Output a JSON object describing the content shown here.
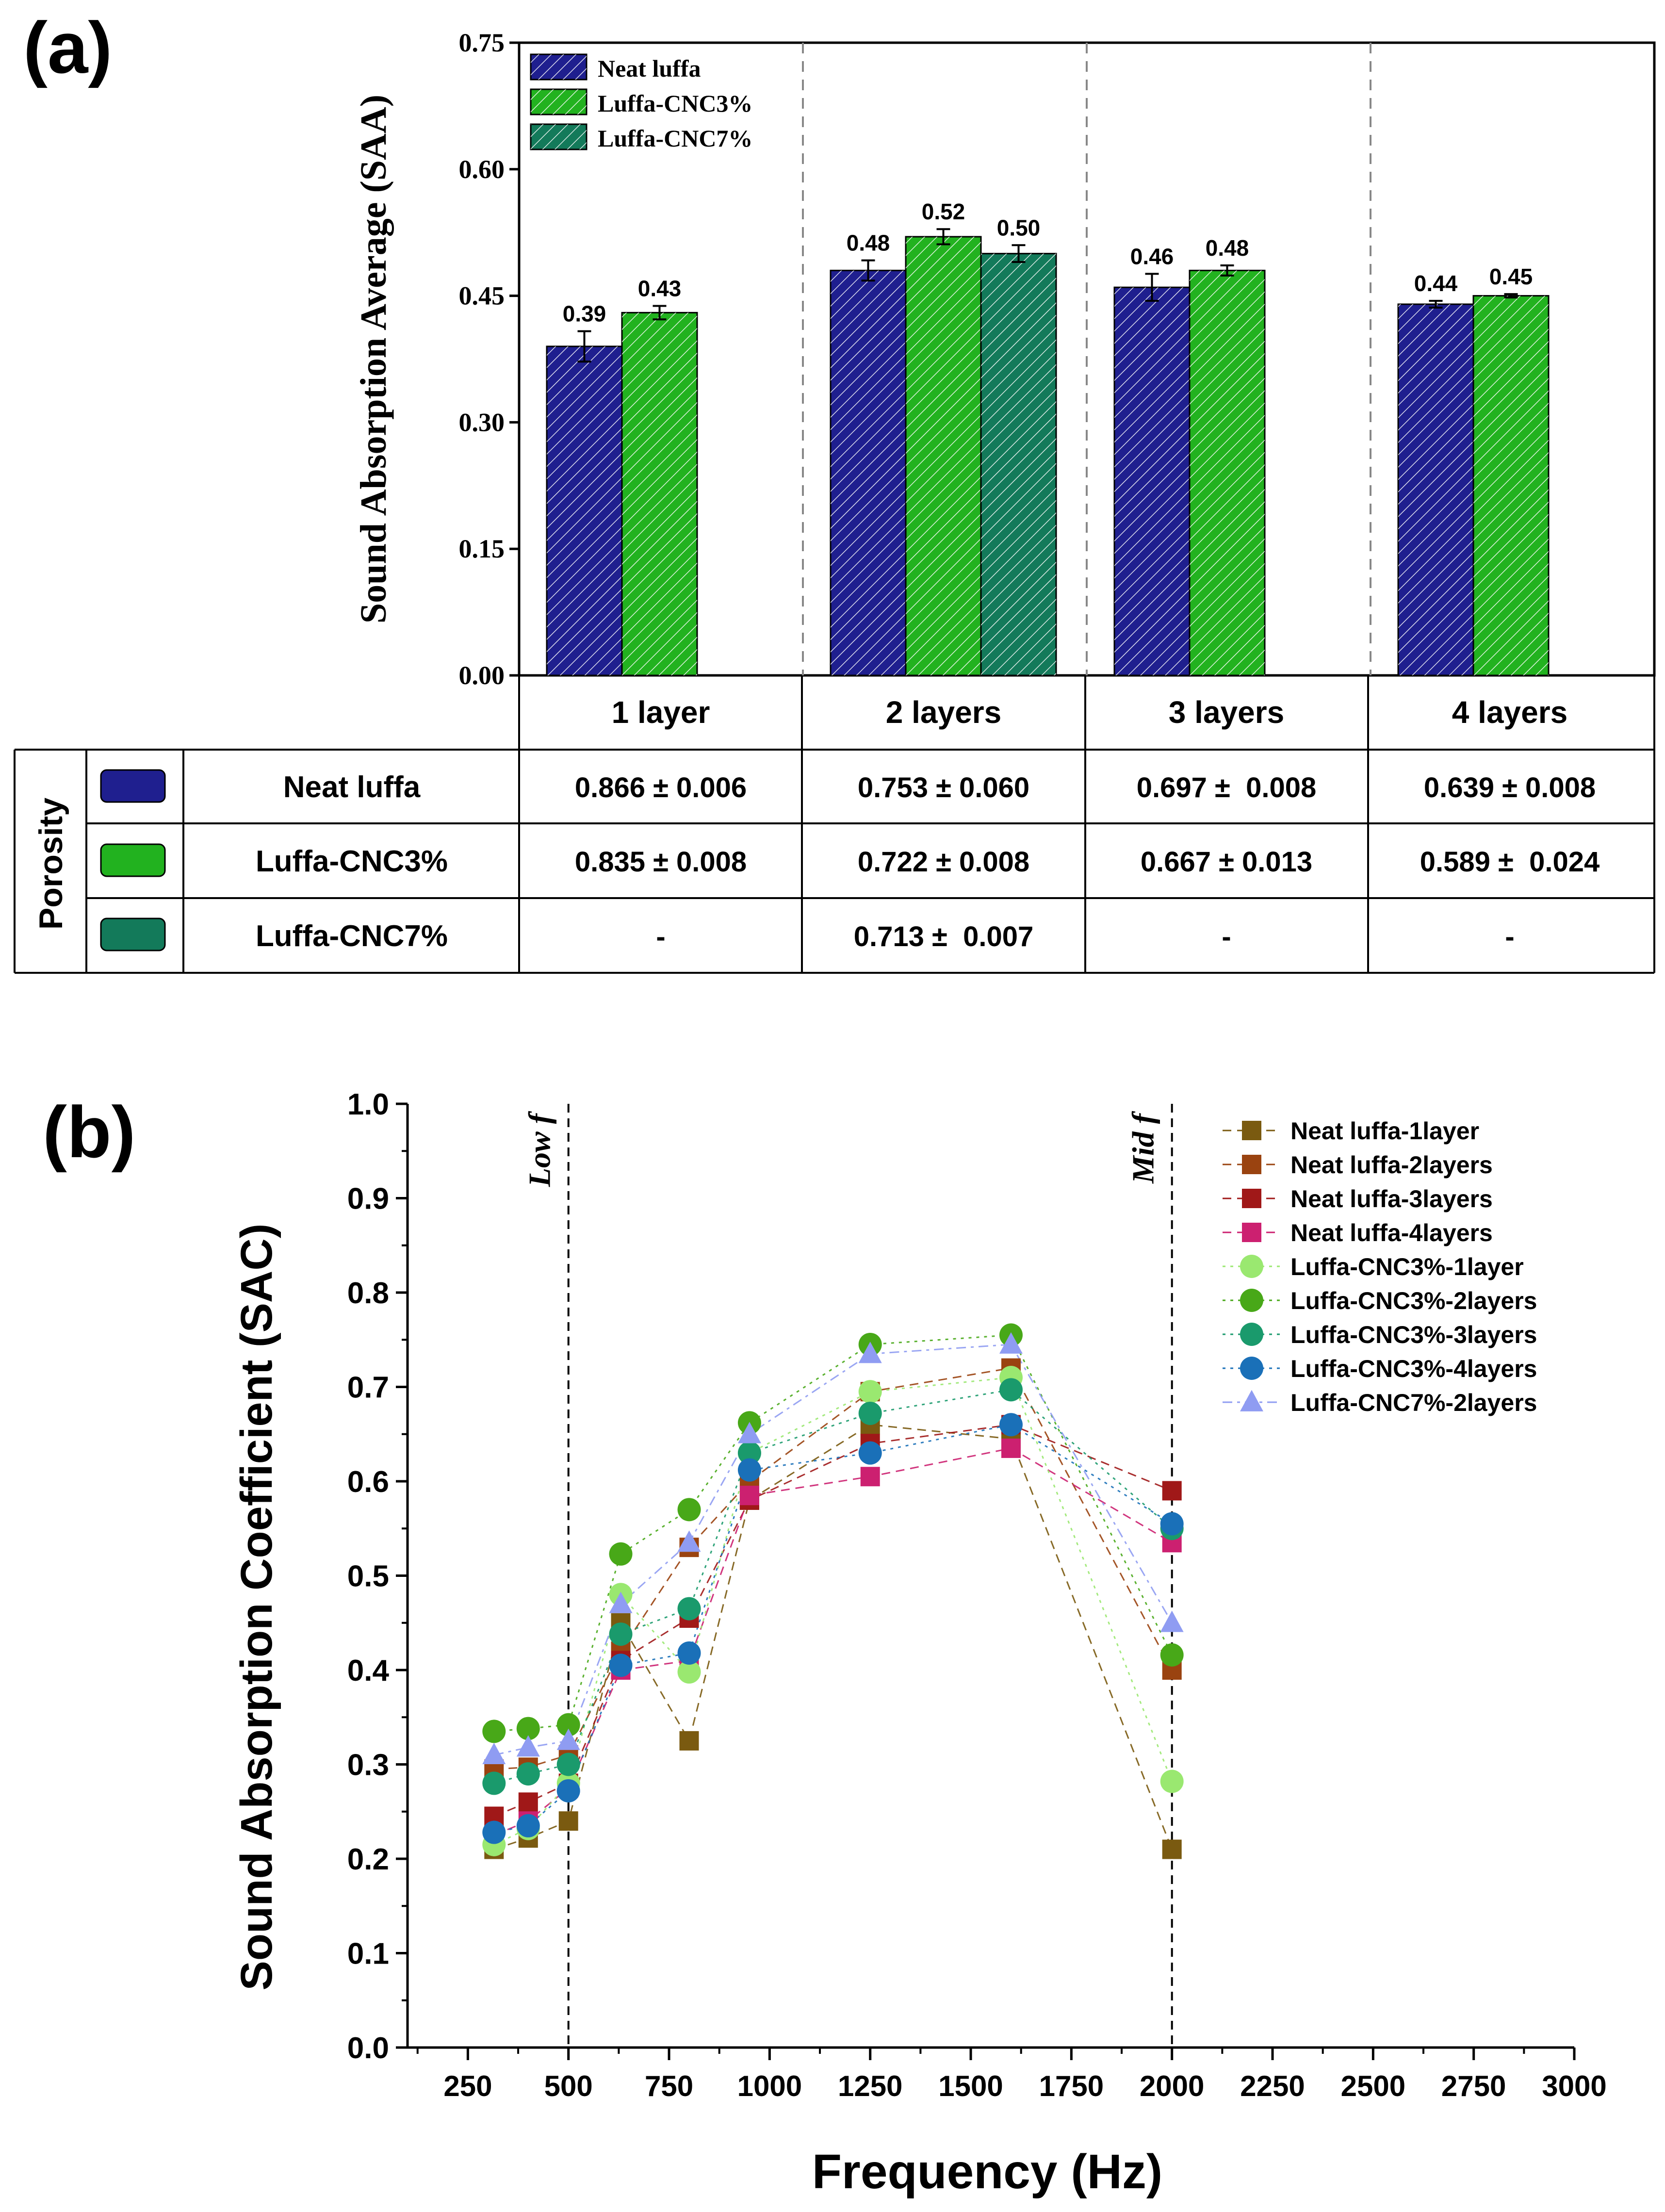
{
  "panel_a": {
    "label": "(a)",
    "chart_data": {
      "type": "bar",
      "ylabel": "Sound Absorption Average (SAA)",
      "ylim": [
        0,
        0.75
      ],
      "yticks": [
        "0.00",
        "0.15",
        "0.30",
        "0.45",
        "0.60",
        "0.75"
      ],
      "categories": [
        "1 layer",
        "2 layers",
        "3 layers",
        "4 layers"
      ],
      "series": [
        {
          "name": "Neat luffa",
          "color": "#1f1f8f",
          "values": [
            0.39,
            0.48,
            0.46,
            0.44
          ],
          "labels": [
            "0.39",
            "0.48",
            "0.46",
            "0.44"
          ],
          "errors": [
            0.018,
            0.012,
            0.016,
            0.004
          ]
        },
        {
          "name": "Luffa-CNC3%",
          "color": "#22b21f",
          "values": [
            0.43,
            0.52,
            0.48,
            0.45
          ],
          "labels": [
            "0.43",
            "0.52",
            "0.48",
            "0.45"
          ],
          "errors": [
            0.008,
            0.009,
            0.006,
            0.002
          ]
        },
        {
          "name": "Luffa-CNC7%",
          "color": "#137a5a",
          "values": [
            null,
            0.5,
            null,
            null
          ],
          "labels": [
            "",
            "0.50",
            "",
            ""
          ],
          "errors": [
            null,
            0.01,
            null,
            null
          ]
        }
      ],
      "legend": "top-left"
    },
    "table": {
      "row_header": "Porosity",
      "columns": [
        "1 layer",
        "2 layers",
        "3 layers",
        "4 layers"
      ],
      "rows": [
        {
          "name": "Neat luffa",
          "color": "#1f1f8f",
          "cells": [
            "0.866 ± 0.006",
            "0.753 ± 0.060",
            "0.697 ±  0.008",
            "0.639 ± 0.008"
          ]
        },
        {
          "name": "Luffa-CNC3%",
          "color": "#22b21f",
          "cells": [
            "0.835 ± 0.008",
            "0.722 ± 0.008",
            "0.667 ± 0.013",
            "0.589 ±  0.024"
          ]
        },
        {
          "name": "Luffa-CNC7%",
          "color": "#137a5a",
          "cells": [
            "-",
            "0.713 ±  0.007",
            "-",
            "-"
          ]
        }
      ]
    }
  },
  "panel_b": {
    "label": "(b)",
    "chart_data": {
      "type": "scatter",
      "xlabel": "Frequency (Hz)",
      "ylabel": "Sound Absorption Coefficient (SAC)",
      "xlim": [
        100,
        3000
      ],
      "ylim": [
        0,
        1.0
      ],
      "xticks": [
        250,
        500,
        750,
        1000,
        1250,
        1500,
        1750,
        2000,
        2250,
        2500,
        2750,
        3000
      ],
      "yticks": [
        "0.0",
        "0.1",
        "0.2",
        "0.3",
        "0.4",
        "0.5",
        "0.6",
        "0.7",
        "0.8",
        "0.9",
        "1.0"
      ],
      "x": [
        315,
        400,
        500,
        630,
        800,
        950,
        1250,
        1600,
        2000
      ],
      "vlines": [
        {
          "x": 500,
          "text": "Low f"
        },
        {
          "x": 2000,
          "text": "Mid f"
        }
      ],
      "series": [
        {
          "name": "Neat luffa-1layer",
          "marker": "square",
          "color": "#7a5a10",
          "values": [
            0.21,
            0.222,
            0.24,
            0.45,
            0.325,
            0.58,
            0.66,
            0.645,
            0.21
          ]
        },
        {
          "name": "Neat luffa-2layers",
          "marker": "square",
          "color": "#9a4310",
          "values": [
            0.295,
            0.297,
            0.31,
            0.42,
            0.53,
            0.6,
            0.695,
            0.72,
            0.4
          ]
        },
        {
          "name": "Neat luffa-3layers",
          "marker": "square",
          "color": "#a01818",
          "values": [
            0.245,
            0.26,
            0.28,
            0.41,
            0.455,
            0.58,
            0.64,
            0.66,
            0.59
          ]
        },
        {
          "name": "Neat luffa-4layers",
          "marker": "square",
          "color": "#cc2070",
          "values": [
            0.225,
            0.24,
            0.275,
            0.4,
            0.41,
            0.585,
            0.605,
            0.635,
            0.535
          ]
        },
        {
          "name": "Luffa-CNC3%-1layer",
          "marker": "circle",
          "color": "#9ae870",
          "values": [
            0.215,
            0.232,
            0.28,
            0.48,
            0.398,
            0.63,
            0.695,
            0.71,
            0.282
          ]
        },
        {
          "name": "Luffa-CNC3%-2layers",
          "marker": "circle",
          "color": "#48a818",
          "values": [
            0.335,
            0.338,
            0.342,
            0.523,
            0.57,
            0.662,
            0.745,
            0.755,
            0.416
          ]
        },
        {
          "name": "Luffa-CNC3%-3layers",
          "marker": "circle",
          "color": "#1a9a6c",
          "values": [
            0.28,
            0.29,
            0.3,
            0.438,
            0.465,
            0.63,
            0.672,
            0.697,
            0.55
          ]
        },
        {
          "name": "Luffa-CNC3%-4layers",
          "marker": "circle",
          "color": "#1a70b8",
          "values": [
            0.228,
            0.235,
            0.272,
            0.405,
            0.418,
            0.612,
            0.63,
            0.66,
            0.555
          ]
        },
        {
          "name": "Luffa-CNC7%-2layers",
          "marker": "triangle",
          "color": "#8f9cf2",
          "values": [
            0.31,
            0.318,
            0.325,
            0.47,
            0.535,
            0.65,
            0.735,
            0.745,
            0.45
          ]
        }
      ],
      "legend": "top-right"
    }
  }
}
